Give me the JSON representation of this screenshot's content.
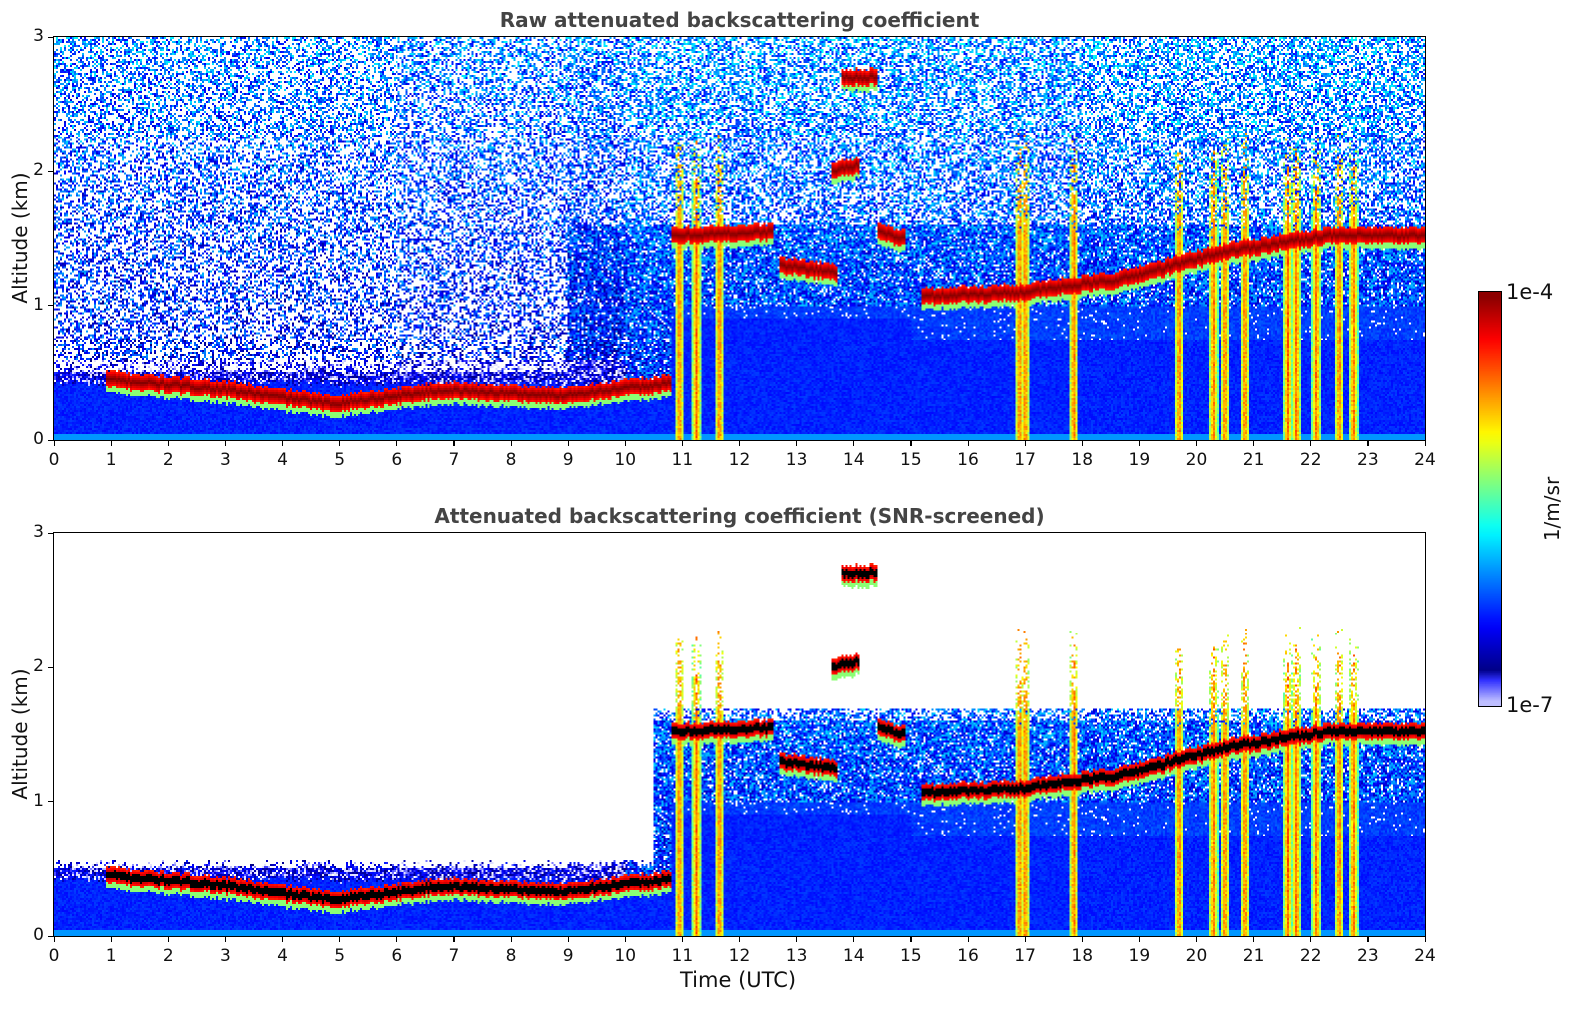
{
  "chart_data": [
    {
      "type": "heatmap",
      "title": "Raw attenuated backscattering coefficient",
      "xlabel": "",
      "ylabel": "Altitude (km)",
      "xlim": [
        0,
        24
      ],
      "ylim": [
        0,
        3
      ],
      "xticks": [
        "0",
        "1",
        "2",
        "3",
        "4",
        "5",
        "6",
        "7",
        "8",
        "9",
        "10",
        "11",
        "12",
        "13",
        "14",
        "15",
        "16",
        "17",
        "18",
        "19",
        "20",
        "21",
        "22",
        "23",
        "24"
      ],
      "yticks": [
        "0",
        "1",
        "2",
        "3"
      ],
      "screened": false
    },
    {
      "type": "heatmap",
      "title": "Attenuated backscattering coefficient (SNR-screened)",
      "xlabel": "Time (UTC)",
      "ylabel": "Altitude (km)",
      "xlim": [
        0,
        24
      ],
      "ylim": [
        0,
        3
      ],
      "xticks": [
        "0",
        "1",
        "2",
        "3",
        "4",
        "5",
        "6",
        "7",
        "8",
        "9",
        "10",
        "11",
        "12",
        "13",
        "14",
        "15",
        "16",
        "17",
        "18",
        "19",
        "20",
        "21",
        "22",
        "23",
        "24"
      ],
      "yticks": [
        "0",
        "1",
        "2",
        "3"
      ],
      "screened": true
    }
  ],
  "colorbar": {
    "label": "1/m/sr",
    "max_label": "1e-4",
    "min_label": "1e-7",
    "scale": "log",
    "colormap": "jet",
    "range": [
      1e-07,
      0.0001
    ]
  },
  "features": {
    "cloud_layers_km": [
      {
        "t": [
          0.9,
          10.8
        ],
        "alt_km": [
          0.45,
          0.38,
          0.27,
          0.37,
          0.33,
          0.42
        ]
      },
      {
        "t": [
          10.8,
          12.6
        ],
        "alt_km": [
          1.52,
          1.55
        ]
      },
      {
        "t": [
          12.7,
          13.7
        ],
        "alt_km": [
          1.3,
          1.25
        ]
      },
      {
        "t": [
          14.4,
          14.9
        ],
        "alt_km": [
          1.55,
          1.5
        ]
      },
      {
        "t": [
          15.2,
          24.0
        ],
        "alt_km": [
          1.07,
          1.1,
          1.2,
          1.4,
          1.52,
          1.52
        ]
      },
      {
        "t": [
          13.6,
          14.1
        ],
        "alt_km": [
          2.0,
          2.05
        ]
      },
      {
        "t": [
          13.8,
          14.4
        ],
        "alt_km": [
          2.7,
          2.7
        ]
      }
    ],
    "precip_shafts_utc": [
      10.95,
      11.25,
      11.65,
      16.9,
      17.0,
      17.85,
      19.7,
      20.3,
      20.5,
      20.85,
      21.6,
      21.75,
      22.1,
      22.5,
      22.75
    ]
  }
}
